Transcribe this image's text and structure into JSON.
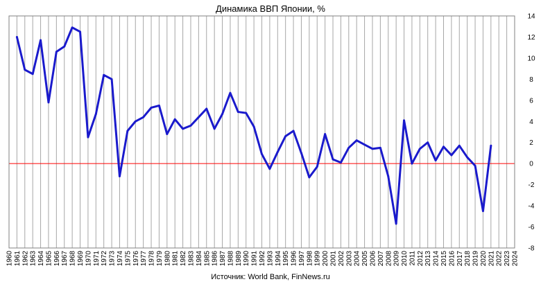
{
  "chart_data": {
    "type": "line",
    "title": "Динамика ВВП Японии, %",
    "source": "Источник: World Bank, FinNews.ru",
    "xlabel": "",
    "ylabel": "",
    "x_range": [
      1960,
      2024
    ],
    "ylim": [
      -8,
      14
    ],
    "y_ticks": [
      -8,
      -6,
      -4,
      -2,
      0,
      2,
      4,
      6,
      8,
      10,
      12,
      14
    ],
    "x_ticks": [
      1960,
      1961,
      1962,
      1963,
      1964,
      1965,
      1966,
      1967,
      1968,
      1969,
      1970,
      1971,
      1972,
      1973,
      1974,
      1975,
      1976,
      1977,
      1978,
      1979,
      1980,
      1981,
      1982,
      1983,
      1984,
      1985,
      1986,
      1987,
      1988,
      1989,
      1990,
      1991,
      1992,
      1993,
      1994,
      1995,
      1996,
      1997,
      1998,
      1999,
      2000,
      2001,
      2002,
      2003,
      2004,
      2005,
      2006,
      2007,
      2008,
      2009,
      2010,
      2011,
      2012,
      2013,
      2014,
      2015,
      2016,
      2017,
      2018,
      2019,
      2020,
      2021,
      2022,
      2023,
      2024
    ],
    "grid": "vertical",
    "y_axis_position": "right",
    "zero_line_color": "#ff0000",
    "series": [
      {
        "color": "#1a1acc",
        "x": [
          1961,
          1962,
          1963,
          1964,
          1965,
          1966,
          1967,
          1968,
          1969,
          1970,
          1971,
          1972,
          1973,
          1974,
          1975,
          1976,
          1977,
          1978,
          1979,
          1980,
          1981,
          1982,
          1983,
          1984,
          1985,
          1986,
          1987,
          1988,
          1989,
          1990,
          1991,
          1992,
          1993,
          1994,
          1995,
          1996,
          1997,
          1998,
          1999,
          2000,
          2001,
          2002,
          2003,
          2004,
          2005,
          2006,
          2007,
          2008,
          2009,
          2010,
          2011,
          2012,
          2013,
          2014,
          2015,
          2016,
          2017,
          2018,
          2019,
          2020,
          2021
        ],
        "values": [
          12.0,
          8.9,
          8.5,
          11.7,
          5.8,
          10.6,
          11.1,
          12.9,
          12.5,
          2.5,
          4.7,
          8.4,
          8.0,
          -1.2,
          3.1,
          4.0,
          4.4,
          5.3,
          5.5,
          2.8,
          4.2,
          3.3,
          3.6,
          4.4,
          5.2,
          3.3,
          4.7,
          6.7,
          4.9,
          4.8,
          3.5,
          0.9,
          -0.5,
          1.1,
          2.6,
          3.1,
          1.0,
          -1.3,
          -0.3,
          2.8,
          0.4,
          0.1,
          1.5,
          2.2,
          1.8,
          1.4,
          1.5,
          -1.2,
          -5.7,
          4.1,
          0.0,
          1.4,
          2.0,
          0.3,
          1.6,
          0.8,
          1.7,
          0.6,
          -0.2,
          -4.5,
          1.7
        ]
      }
    ]
  }
}
